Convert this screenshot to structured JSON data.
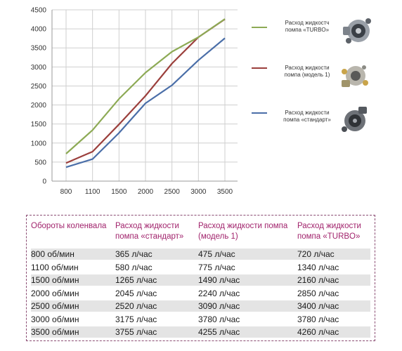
{
  "chart_data": {
    "type": "line",
    "categories": [
      "800",
      "1100",
      "1500",
      "2000",
      "2500",
      "3000",
      "3500"
    ],
    "ylim": [
      0,
      4500
    ],
    "yticks": [
      "0",
      "500",
      "1000",
      "1500",
      "2000",
      "2500",
      "3000",
      "3500",
      "4000",
      "4500"
    ],
    "grid": true,
    "series": [
      {
        "name": "Расход жидкостч помпа «TURBO»",
        "color": "#8daa55",
        "values": [
          720,
          1340,
          2160,
          2850,
          3400,
          3780,
          4260
        ]
      },
      {
        "name": "Расход жидкости помпа (модель 1)",
        "color": "#9b3f3c",
        "values": [
          475,
          775,
          1490,
          2240,
          3090,
          3780,
          4255
        ]
      },
      {
        "name": "Расход жидкости помпа «стандарт»",
        "color": "#4a6ea8",
        "values": [
          365,
          580,
          1265,
          2045,
          2520,
          3175,
          3755
        ]
      }
    ]
  },
  "legend": [
    {
      "line1": "Расход жидкостч",
      "line2": "помпа «TURBO»",
      "color": "#8daa55",
      "icon": "turbo-pump-icon"
    },
    {
      "line1": "Расход жидкости",
      "line2": "помпа  (модель 1)",
      "color": "#9b3f3c",
      "icon": "model1-pump-icon"
    },
    {
      "line1": "Расход жидкости",
      "line2": "помпа «стандарт»",
      "color": "#4a6ea8",
      "icon": "standard-pump-icon"
    }
  ],
  "table": {
    "headers": [
      {
        "line1": "Обороты коленвала",
        "line2": ""
      },
      {
        "line1": "Расход жидкости",
        "line2": "помпа «стандарт»"
      },
      {
        "line1": "Расход жидкости помпа",
        "line2": "(модель 1)"
      },
      {
        "line1": "Расход жидкости",
        "line2": "помпа «TURBO»"
      }
    ],
    "rows": [
      [
        "800 об/мин",
        "365 л/час",
        "475 л/час",
        "720 л/час"
      ],
      [
        "1100 об/мин",
        "580 л/час",
        "775 л/час",
        "1340 л/час"
      ],
      [
        "1500 об/мин",
        "1265 л/час",
        "1490 л/час",
        "2160 л/час"
      ],
      [
        "2000 об/мин",
        "2045 л/час",
        "2240 л/час",
        "2850 л/час"
      ],
      [
        "2500 об/мин",
        "2520 л/час",
        "3090 л/час",
        "3400 л/час"
      ],
      [
        "3000 об/мин",
        "3175 л/час",
        "3780 л/час",
        "3780 л/час"
      ],
      [
        "3500 об/мин",
        "3755 л/час",
        "4255 л/час",
        "4260 л/час"
      ]
    ]
  }
}
